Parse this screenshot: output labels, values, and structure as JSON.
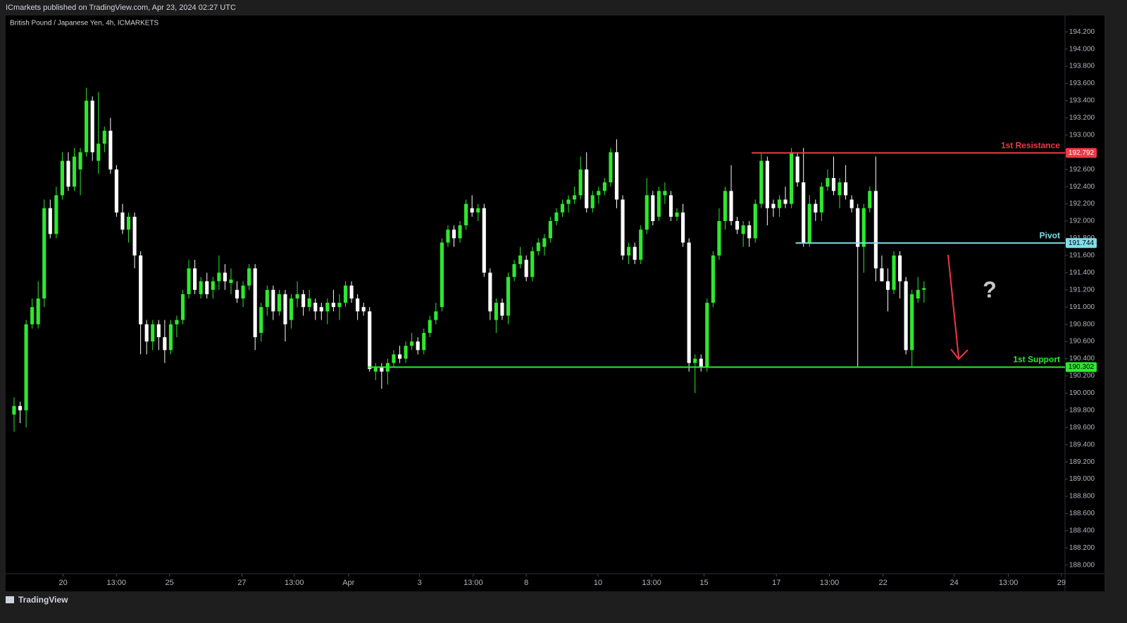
{
  "header": {
    "publisher": "ICmarkets published on TradingView.com, Apr 23, 2024 02:27 UTC",
    "brand": "TradingView"
  },
  "chart_data": {
    "type": "candlestick",
    "title": "British Pound / Japanese Yen, 4h, ICMARKETS",
    "up_color": "#2ee82e",
    "down_color": "#ffffff",
    "grid": false,
    "xlim": [
      -1.4,
      174.4
    ],
    "ylim": [
      187.9,
      194.39
    ],
    "xticks": [
      {
        "value": 8.14,
        "label": "20"
      },
      {
        "value": 16.98,
        "label": "13:00"
      },
      {
        "value": 25.8,
        "label": "25"
      },
      {
        "value": 37.8,
        "label": "27"
      },
      {
        "value": 46.5,
        "label": "13:00"
      },
      {
        "value": 55.5,
        "label": "Apr"
      },
      {
        "value": 67.3,
        "label": "3"
      },
      {
        "value": 76.2,
        "label": "13:00"
      },
      {
        "value": 85,
        "label": "8"
      },
      {
        "value": 96.9,
        "label": "10"
      },
      {
        "value": 105.8,
        "label": "13:00"
      },
      {
        "value": 114.5,
        "label": "15"
      },
      {
        "value": 126.5,
        "label": "17"
      },
      {
        "value": 135.3,
        "label": "13:00"
      },
      {
        "value": 144.2,
        "label": "22"
      },
      {
        "value": 156,
        "label": "24"
      },
      {
        "value": 165,
        "label": "13:00"
      },
      {
        "value": 173.8,
        "label": "29"
      }
    ],
    "yticks": [
      {
        "value": 188.0,
        "label": "188.000"
      },
      {
        "value": 188.2,
        "label": "188.200"
      },
      {
        "value": 188.4,
        "label": "188.400"
      },
      {
        "value": 188.6,
        "label": "188.600"
      },
      {
        "value": 188.8,
        "label": "188.800"
      },
      {
        "value": 189.0,
        "label": "189.000"
      },
      {
        "value": 189.2,
        "label": "189.200"
      },
      {
        "value": 189.4,
        "label": "189.400"
      },
      {
        "value": 189.6,
        "label": "189.600"
      },
      {
        "value": 189.8,
        "label": "189.800"
      },
      {
        "value": 190.0,
        "label": "190.000"
      },
      {
        "value": 190.2,
        "label": "190.200"
      },
      {
        "value": 190.4,
        "label": "190.400"
      },
      {
        "value": 190.6,
        "label": "190.600"
      },
      {
        "value": 190.8,
        "label": "190.800"
      },
      {
        "value": 191.0,
        "label": "191.000"
      },
      {
        "value": 191.2,
        "label": "191.200"
      },
      {
        "value": 191.4,
        "label": "191.400"
      },
      {
        "value": 191.6,
        "label": "191.600"
      },
      {
        "value": 191.8,
        "label": "191.800"
      },
      {
        "value": 192.0,
        "label": "192.000"
      },
      {
        "value": 192.2,
        "label": "192.200"
      },
      {
        "value": 192.4,
        "label": "192.400"
      },
      {
        "value": 192.6,
        "label": "192.600"
      },
      {
        "value": 192.8,
        "label": "192.800"
      },
      {
        "value": 193.0,
        "label": "193.000"
      },
      {
        "value": 193.2,
        "label": "193.200"
      },
      {
        "value": 193.4,
        "label": "193.400"
      },
      {
        "value": 193.6,
        "label": "193.600"
      },
      {
        "value": 193.8,
        "label": "193.800"
      },
      {
        "value": 194.0,
        "label": "194.000"
      },
      {
        "value": 194.2,
        "label": "194.200"
      }
    ],
    "candles": [
      [
        189.75,
        189.95,
        189.55,
        189.85
      ],
      [
        189.85,
        189.9,
        189.65,
        189.8
      ],
      [
        189.8,
        190.85,
        189.6,
        190.8
      ],
      [
        190.8,
        191.1,
        190.75,
        191.0
      ],
      [
        190.8,
        191.3,
        190.75,
        191.1
      ],
      [
        191.1,
        192.25,
        191.0,
        192.15
      ],
      [
        192.15,
        192.25,
        191.8,
        191.85
      ],
      [
        191.85,
        192.4,
        191.8,
        192.3
      ],
      [
        192.3,
        192.8,
        192.25,
        192.7
      ],
      [
        192.7,
        192.8,
        192.35,
        192.4
      ],
      [
        192.4,
        192.85,
        192.35,
        192.75
      ],
      [
        192.6,
        192.85,
        192.3,
        192.8
      ],
      [
        192.8,
        193.55,
        192.75,
        193.4
      ],
      [
        193.4,
        193.45,
        192.7,
        192.8
      ],
      [
        192.7,
        193.5,
        192.55,
        192.9
      ],
      [
        192.9,
        193.1,
        192.8,
        193.05
      ],
      [
        193.05,
        193.2,
        192.55,
        192.6
      ],
      [
        192.6,
        192.65,
        192.05,
        192.1
      ],
      [
        192.1,
        192.2,
        191.85,
        191.9
      ],
      [
        191.9,
        192.1,
        191.75,
        192.05
      ],
      [
        192.05,
        192.1,
        191.45,
        191.6
      ],
      [
        191.6,
        191.65,
        190.45,
        190.8
      ],
      [
        190.8,
        190.85,
        190.45,
        190.6
      ],
      [
        190.6,
        190.85,
        190.5,
        190.8
      ],
      [
        190.8,
        190.85,
        190.5,
        190.65
      ],
      [
        190.65,
        190.85,
        190.35,
        190.5
      ],
      [
        190.5,
        190.85,
        190.45,
        190.8
      ],
      [
        190.8,
        190.9,
        190.65,
        190.85
      ],
      [
        190.85,
        191.2,
        190.8,
        191.15
      ],
      [
        191.15,
        191.55,
        191.1,
        191.45
      ],
      [
        191.45,
        191.55,
        191.15,
        191.2
      ],
      [
        191.15,
        191.35,
        191.1,
        191.3
      ],
      [
        191.3,
        191.4,
        191.1,
        191.15
      ],
      [
        191.2,
        191.35,
        191.1,
        191.3
      ],
      [
        191.3,
        191.6,
        191.2,
        191.4
      ],
      [
        191.4,
        191.5,
        191.2,
        191.3
      ],
      [
        191.28,
        191.45,
        191.15,
        191.32
      ],
      [
        191.2,
        191.3,
        191.05,
        191.1
      ],
      [
        191.1,
        191.3,
        191.0,
        191.25
      ],
      [
        191.25,
        191.5,
        191.2,
        191.45
      ],
      [
        191.45,
        191.5,
        190.5,
        190.65
      ],
      [
        190.7,
        191.05,
        190.6,
        191.0
      ],
      [
        191.0,
        191.25,
        190.9,
        191.2
      ],
      [
        191.2,
        191.25,
        190.85,
        190.95
      ],
      [
        190.95,
        191.2,
        190.9,
        191.15
      ],
      [
        191.15,
        191.2,
        190.6,
        190.8
      ],
      [
        190.85,
        191.15,
        190.75,
        191.1
      ],
      [
        191.1,
        191.3,
        191.0,
        191.15
      ],
      [
        191.15,
        191.2,
        190.9,
        191.0
      ],
      [
        191.0,
        191.2,
        190.95,
        191.1
      ],
      [
        191.05,
        191.1,
        190.85,
        190.95
      ],
      [
        191.0,
        191.05,
        190.85,
        190.95
      ],
      [
        190.95,
        191.1,
        190.8,
        191.05
      ],
      [
        191.05,
        191.2,
        190.95,
        191.0
      ],
      [
        191.0,
        191.15,
        190.85,
        191.05
      ],
      [
        191.05,
        191.3,
        191.0,
        191.25
      ],
      [
        191.25,
        191.3,
        191.05,
        191.1
      ],
      [
        191.1,
        191.15,
        190.85,
        190.95
      ],
      [
        191.0,
        191.05,
        190.9,
        190.95
      ],
      [
        190.95,
        191.0,
        190.25,
        190.28
      ],
      [
        190.25,
        190.35,
        190.15,
        190.3
      ],
      [
        190.3,
        190.35,
        190.05,
        190.25
      ],
      [
        190.25,
        190.4,
        190.1,
        190.35
      ],
      [
        190.35,
        190.5,
        190.3,
        190.45
      ],
      [
        190.45,
        190.55,
        190.35,
        190.4
      ],
      [
        190.4,
        190.6,
        190.35,
        190.55
      ],
      [
        190.55,
        190.7,
        190.5,
        190.6
      ],
      [
        190.6,
        190.65,
        190.45,
        190.5
      ],
      [
        190.5,
        190.75,
        190.45,
        190.7
      ],
      [
        190.7,
        190.9,
        190.65,
        190.85
      ],
      [
        190.85,
        191.05,
        190.8,
        190.95
      ],
      [
        191.0,
        191.8,
        190.95,
        191.75
      ],
      [
        191.75,
        191.95,
        191.7,
        191.9
      ],
      [
        191.9,
        191.95,
        191.7,
        191.8
      ],
      [
        191.8,
        192.0,
        191.75,
        191.95
      ],
      [
        191.95,
        192.25,
        191.9,
        192.2
      ],
      [
        192.15,
        192.3,
        192.05,
        192.1
      ],
      [
        192.1,
        192.2,
        192.0,
        192.15
      ],
      [
        192.15,
        192.2,
        191.35,
        191.4
      ],
      [
        191.4,
        191.45,
        190.85,
        190.95
      ],
      [
        190.85,
        191.1,
        190.7,
        191.05
      ],
      [
        191.05,
        191.1,
        190.85,
        190.9
      ],
      [
        190.9,
        191.4,
        190.8,
        191.35
      ],
      [
        191.35,
        191.55,
        191.3,
        191.5
      ],
      [
        191.5,
        191.7,
        191.45,
        191.6
      ],
      [
        191.55,
        191.6,
        191.3,
        191.35
      ],
      [
        191.35,
        191.7,
        191.3,
        191.65
      ],
      [
        191.65,
        191.8,
        191.6,
        191.75
      ],
      [
        191.7,
        191.85,
        191.6,
        191.8
      ],
      [
        191.8,
        192.05,
        191.75,
        192.0
      ],
      [
        192.0,
        192.15,
        191.95,
        192.1
      ],
      [
        192.1,
        192.25,
        192.05,
        192.2
      ],
      [
        192.2,
        192.3,
        192.1,
        192.25
      ],
      [
        192.25,
        192.4,
        192.2,
        192.3
      ],
      [
        192.3,
        192.75,
        192.25,
        192.6
      ],
      [
        192.6,
        192.8,
        192.1,
        192.15
      ],
      [
        192.15,
        192.35,
        192.1,
        192.3
      ],
      [
        192.3,
        192.4,
        192.2,
        192.35
      ],
      [
        192.35,
        192.5,
        192.3,
        192.45
      ],
      [
        192.45,
        192.85,
        192.4,
        192.8
      ],
      [
        192.8,
        192.95,
        192.15,
        192.25
      ],
      [
        192.25,
        192.3,
        191.55,
        191.6
      ],
      [
        191.6,
        191.75,
        191.5,
        191.7
      ],
      [
        191.7,
        191.75,
        191.5,
        191.55
      ],
      [
        191.55,
        191.95,
        191.5,
        191.9
      ],
      [
        191.9,
        192.5,
        191.85,
        192.3
      ],
      [
        192.3,
        192.35,
        191.95,
        192.0
      ],
      [
        192.05,
        192.4,
        192.0,
        192.35
      ],
      [
        192.3,
        192.45,
        192.2,
        192.35
      ],
      [
        192.3,
        192.35,
        192.0,
        192.05
      ],
      [
        192.05,
        192.15,
        192.0,
        192.1
      ],
      [
        192.1,
        192.2,
        191.7,
        191.75
      ],
      [
        191.75,
        191.8,
        190.25,
        190.35
      ],
      [
        190.35,
        190.45,
        190.0,
        190.4
      ],
      [
        190.4,
        190.45,
        190.25,
        190.3
      ],
      [
        190.3,
        191.1,
        190.25,
        191.05
      ],
      [
        191.05,
        191.65,
        191.0,
        191.6
      ],
      [
        191.6,
        192.15,
        191.55,
        192.0
      ],
      [
        192.0,
        192.4,
        191.9,
        192.35
      ],
      [
        192.35,
        192.65,
        191.95,
        192.0
      ],
      [
        192.0,
        192.05,
        191.85,
        191.9
      ],
      [
        191.85,
        192.0,
        191.7,
        191.95
      ],
      [
        191.95,
        192.0,
        191.7,
        191.8
      ],
      [
        191.8,
        192.25,
        191.75,
        192.2
      ],
      [
        192.2,
        192.8,
        192.15,
        192.7
      ],
      [
        192.7,
        192.75,
        191.95,
        192.15
      ],
      [
        192.2,
        192.25,
        192.05,
        192.15
      ],
      [
        192.15,
        192.3,
        192.05,
        192.25
      ],
      [
        192.25,
        192.4,
        192.15,
        192.2
      ],
      [
        192.2,
        192.85,
        192.15,
        192.8
      ],
      [
        192.75,
        192.8,
        192.4,
        192.45
      ],
      [
        192.45,
        192.85,
        191.7,
        191.75
      ],
      [
        191.75,
        192.3,
        191.7,
        192.2
      ],
      [
        192.2,
        192.25,
        192.0,
        192.1
      ],
      [
        192.1,
        192.45,
        192.0,
        192.4
      ],
      [
        192.4,
        192.6,
        192.35,
        192.5
      ],
      [
        192.5,
        192.75,
        192.3,
        192.35
      ],
      [
        192.3,
        192.5,
        192.15,
        192.45
      ],
      [
        192.45,
        192.65,
        192.25,
        192.3
      ],
      [
        192.25,
        192.3,
        192.1,
        192.15
      ],
      [
        192.15,
        192.2,
        190.3,
        191.7
      ],
      [
        191.7,
        192.2,
        191.4,
        192.15
      ],
      [
        192.15,
        192.4,
        192.1,
        192.35
      ],
      [
        192.35,
        192.75,
        191.3,
        191.45
      ],
      [
        191.45,
        191.6,
        191.3,
        191.3
      ],
      [
        191.3,
        191.45,
        190.95,
        191.2
      ],
      [
        191.2,
        191.65,
        191.15,
        191.6
      ],
      [
        191.6,
        191.65,
        191.1,
        191.3
      ],
      [
        191.3,
        191.35,
        190.45,
        190.5
      ],
      [
        190.5,
        191.2,
        190.3,
        191.15
      ],
      [
        191.1,
        191.35,
        191.05,
        191.2
      ],
      [
        191.2,
        191.3,
        191.05,
        191.22
      ]
    ],
    "levels": [
      {
        "label": "1st Resistance",
        "value": 192.792,
        "color": "#f23645",
        "start": 122.4
      },
      {
        "label": "Pivot",
        "value": 191.744,
        "color": "#80deea",
        "start": 129.7
      },
      {
        "label": "1st Support",
        "value": 190.302,
        "color": "#2ee82e",
        "start": 58.7
      }
    ],
    "annotation": "?"
  }
}
